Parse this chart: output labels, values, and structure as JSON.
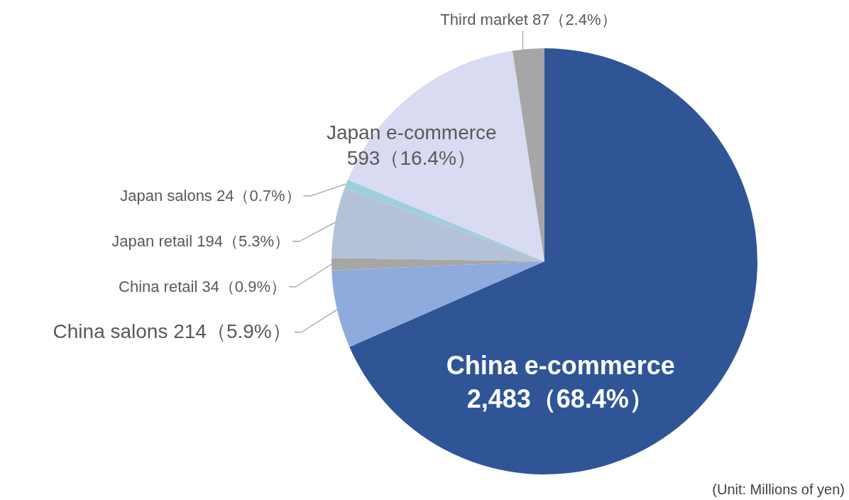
{
  "chart_data": {
    "type": "pie",
    "categories": [
      "China e-commerce",
      "China salons",
      "China retail",
      "Japan retail",
      "Japan salons",
      "Japan e-commerce",
      "Third market"
    ],
    "values": [
      2483,
      214,
      34,
      194,
      24,
      593,
      87
    ],
    "colors": [
      "#2f5597",
      "#8faadc",
      "#a6a6a6",
      "#b4c2d7",
      "#9fcfdc",
      "#d9dbf3",
      "#a6a6a6"
    ],
    "value_labels": [
      "2,483（68.4%）",
      "214（5.9%）",
      "34（0.9%）",
      "194（5.3%）",
      "24（0.7%）",
      "593（16.4%）",
      "87（2.4%）"
    ],
    "annotations": [
      "(Unit: Millions of yen)"
    ]
  }
}
